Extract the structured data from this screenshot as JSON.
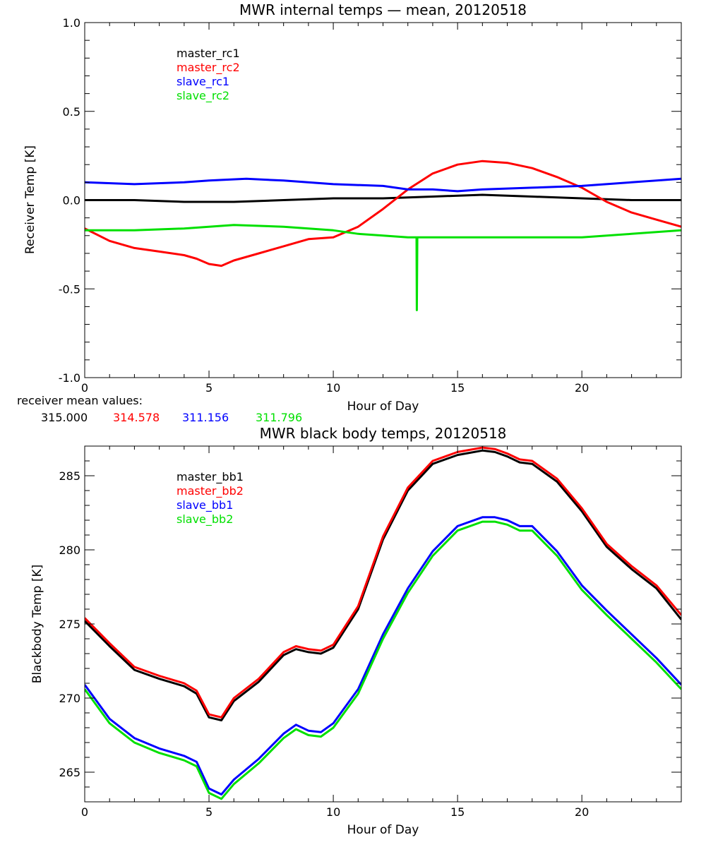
{
  "colors": {
    "black": "#000000",
    "red": "#ff0000",
    "blue": "#0000ff",
    "green": "#00e000"
  },
  "mean_values": {
    "label": "receiver mean values:",
    "values": [
      "315.000",
      "314.578",
      "311.156",
      "311.796"
    ]
  },
  "chart_data": [
    {
      "type": "line",
      "title": "MWR internal temps — mean, 20120518",
      "xlabel": "Hour of Day",
      "ylabel": "Receiver Temp [K]",
      "xlim": [
        0,
        24
      ],
      "ylim": [
        -1.0,
        1.0
      ],
      "xticks": [
        0,
        5,
        10,
        15,
        20
      ],
      "xtick_labels": [
        "0",
        "5",
        "10",
        "15",
        "20"
      ],
      "yticks": [
        -1.0,
        -0.5,
        0.0,
        0.5,
        1.0
      ],
      "ytick_labels": [
        "-1.0",
        "-0.5",
        "0.0",
        "0.5",
        "1.0"
      ],
      "legend_position": "top-left",
      "series": [
        {
          "name": "master_rc1",
          "color": "black",
          "x": [
            0,
            2,
            4,
            5,
            6,
            8,
            10,
            12,
            14,
            16,
            18,
            20,
            22,
            24
          ],
          "y": [
            0.0,
            0.0,
            -0.01,
            -0.01,
            -0.01,
            0.0,
            0.01,
            0.01,
            0.02,
            0.03,
            0.02,
            0.01,
            0.0,
            0.0
          ]
        },
        {
          "name": "master_rc2",
          "color": "red",
          "x": [
            0,
            1,
            2,
            3,
            4,
            4.5,
            5,
            5.5,
            6,
            7,
            8,
            9,
            10,
            11,
            12,
            13,
            14,
            15,
            16,
            17,
            18,
            19,
            20,
            21,
            22,
            23,
            24
          ],
          "y": [
            -0.16,
            -0.23,
            -0.27,
            -0.29,
            -0.31,
            -0.33,
            -0.36,
            -0.37,
            -0.34,
            -0.3,
            -0.26,
            -0.22,
            -0.21,
            -0.15,
            -0.05,
            0.06,
            0.15,
            0.2,
            0.22,
            0.21,
            0.18,
            0.13,
            0.07,
            -0.01,
            -0.07,
            -0.11,
            -0.15
          ]
        },
        {
          "name": "slave_rc1",
          "color": "blue",
          "x": [
            0,
            2,
            4,
            5,
            6.5,
            8,
            10,
            12,
            13,
            14,
            15,
            16,
            18,
            20,
            22,
            24
          ],
          "y": [
            0.1,
            0.09,
            0.1,
            0.11,
            0.12,
            0.11,
            0.09,
            0.08,
            0.06,
            0.06,
            0.05,
            0.06,
            0.07,
            0.08,
            0.1,
            0.12
          ]
        },
        {
          "name": "slave_rc2",
          "color": "green",
          "x": [
            0,
            2,
            4,
            5,
            6,
            8,
            9,
            10,
            11,
            12,
            13,
            13.35,
            13.36,
            13.38,
            13.4,
            14,
            16,
            18,
            20,
            22,
            24
          ],
          "y": [
            -0.17,
            -0.17,
            -0.16,
            -0.15,
            -0.14,
            -0.15,
            -0.16,
            -0.17,
            -0.19,
            -0.2,
            -0.21,
            -0.21,
            -0.62,
            -0.21,
            -0.21,
            -0.21,
            -0.21,
            -0.21,
            -0.21,
            -0.19,
            -0.17
          ]
        }
      ]
    },
    {
      "type": "line",
      "title": "MWR black body temps, 20120518",
      "xlabel": "Hour of Day",
      "ylabel": "Blackbody Temp [K]",
      "xlim": [
        0,
        24
      ],
      "ylim": [
        263.0,
        287.0
      ],
      "xticks": [
        0,
        5,
        10,
        15,
        20
      ],
      "xtick_labels": [
        "0",
        "5",
        "10",
        "15",
        "20"
      ],
      "yticks": [
        265,
        270,
        275,
        280,
        285
      ],
      "ytick_labels": [
        "265",
        "270",
        "275",
        "280",
        "285"
      ],
      "legend_position": "top-left",
      "series": [
        {
          "name": "master_bb1",
          "color": "black",
          "x": [
            0,
            1,
            2,
            3,
            4,
            4.5,
            5,
            5.5,
            6,
            7,
            8,
            8.5,
            9,
            9.5,
            10,
            11,
            12,
            13,
            14,
            15,
            16,
            16.5,
            17,
            17.5,
            18,
            19,
            20,
            21,
            22,
            23,
            24
          ],
          "y": [
            275.2,
            273.5,
            271.9,
            271.3,
            270.8,
            270.3,
            268.7,
            268.5,
            269.8,
            271.1,
            272.9,
            273.3,
            273.1,
            273.0,
            273.4,
            276.0,
            280.7,
            284.0,
            285.8,
            286.4,
            286.7,
            286.6,
            286.3,
            285.9,
            285.8,
            284.6,
            282.6,
            280.2,
            278.7,
            277.4,
            275.3
          ]
        },
        {
          "name": "master_bb2",
          "color": "red",
          "x": [
            0,
            1,
            2,
            3,
            4,
            4.5,
            5,
            5.5,
            6,
            7,
            8,
            8.5,
            9,
            9.5,
            10,
            11,
            12,
            13,
            14,
            15,
            16,
            16.5,
            17,
            17.5,
            18,
            19,
            20,
            21,
            22,
            23,
            24
          ],
          "y": [
            275.4,
            273.7,
            272.1,
            271.5,
            271.0,
            270.5,
            268.9,
            268.7,
            270.0,
            271.3,
            273.1,
            273.5,
            273.3,
            273.2,
            273.6,
            276.2,
            280.9,
            284.2,
            286.0,
            286.6,
            286.9,
            286.8,
            286.5,
            286.1,
            286.0,
            284.8,
            282.8,
            280.4,
            278.9,
            277.6,
            275.6
          ]
        },
        {
          "name": "slave_bb1",
          "color": "blue",
          "x": [
            0,
            1,
            2,
            3,
            4,
            4.5,
            5,
            5.5,
            6,
            7,
            8,
            8.5,
            9,
            9.5,
            10,
            11,
            12,
            13,
            14,
            15,
            16,
            16.5,
            17,
            17.5,
            18,
            19,
            20,
            21,
            22,
            23,
            24
          ],
          "y": [
            270.9,
            268.6,
            267.3,
            266.6,
            266.1,
            265.7,
            263.9,
            263.5,
            264.5,
            265.9,
            267.6,
            268.2,
            267.8,
            267.7,
            268.3,
            270.6,
            274.3,
            277.4,
            279.9,
            281.6,
            282.2,
            282.2,
            282.0,
            281.6,
            281.6,
            279.9,
            277.6,
            275.9,
            274.3,
            272.7,
            270.9
          ]
        },
        {
          "name": "slave_bb2",
          "color": "green",
          "x": [
            0,
            1,
            2,
            3,
            4,
            4.5,
            5,
            5.5,
            6,
            7,
            8,
            8.5,
            9,
            9.5,
            10,
            11,
            12,
            13,
            14,
            15,
            16,
            16.5,
            17,
            17.5,
            18,
            19,
            20,
            21,
            22,
            23,
            24
          ],
          "y": [
            270.6,
            268.3,
            267.0,
            266.3,
            265.8,
            265.4,
            263.6,
            263.2,
            264.2,
            265.6,
            267.3,
            267.9,
            267.5,
            267.4,
            268.0,
            270.3,
            274.0,
            277.1,
            279.6,
            281.3,
            281.9,
            281.9,
            281.7,
            281.3,
            281.3,
            279.6,
            277.3,
            275.6,
            274.0,
            272.4,
            270.6
          ]
        }
      ]
    }
  ]
}
